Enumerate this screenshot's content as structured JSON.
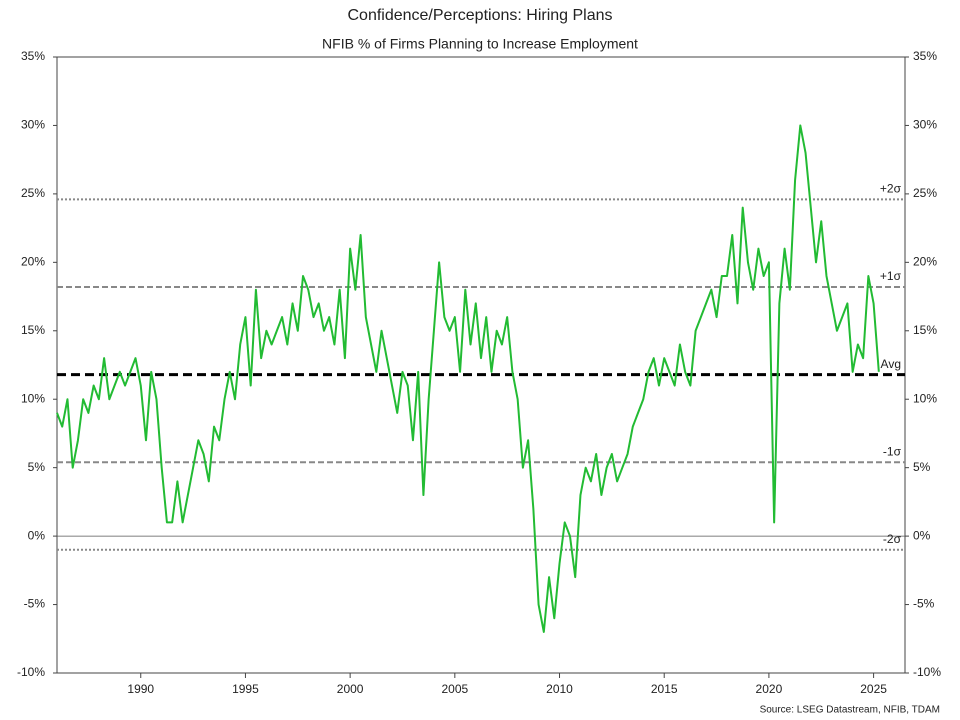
{
  "chart_data": {
    "type": "line",
    "title": "Confidence/Perceptions: Hiring Plans",
    "subtitle": "NFIB % of Firms Planning to Increase Employment",
    "source": "Source: LSEG Datastream, NFIB, TDAM",
    "x": [
      1986,
      1986.25,
      1986.5,
      1986.75,
      1987,
      1987.25,
      1987.5,
      1987.75,
      1988,
      1988.25,
      1988.5,
      1988.75,
      1989,
      1989.25,
      1989.5,
      1989.75,
      1990,
      1990.25,
      1990.5,
      1990.75,
      1991,
      1991.25,
      1991.5,
      1991.75,
      1992,
      1992.25,
      1992.5,
      1992.75,
      1993,
      1993.25,
      1993.5,
      1993.75,
      1994,
      1994.25,
      1994.5,
      1994.75,
      1995,
      1995.25,
      1995.5,
      1995.75,
      1996,
      1996.25,
      1996.5,
      1996.75,
      1997,
      1997.25,
      1997.5,
      1997.75,
      1998,
      1998.25,
      1998.5,
      1998.75,
      1999,
      1999.25,
      1999.5,
      1999.75,
      2000,
      2000.25,
      2000.5,
      2000.75,
      2001,
      2001.25,
      2001.5,
      2001.75,
      2002,
      2002.25,
      2002.5,
      2002.75,
      2003,
      2003.25,
      2003.5,
      2003.75,
      2004,
      2004.25,
      2004.5,
      2004.75,
      2005,
      2005.25,
      2005.5,
      2005.75,
      2006,
      2006.25,
      2006.5,
      2006.75,
      2007,
      2007.25,
      2007.5,
      2007.75,
      2008,
      2008.25,
      2008.5,
      2008.75,
      2009,
      2009.25,
      2009.5,
      2009.75,
      2010,
      2010.25,
      2010.5,
      2010.75,
      2011,
      2011.25,
      2011.5,
      2011.75,
      2012,
      2012.25,
      2012.5,
      2012.75,
      2013,
      2013.25,
      2013.5,
      2013.75,
      2014,
      2014.25,
      2014.5,
      2014.75,
      2015,
      2015.25,
      2015.5,
      2015.75,
      2016,
      2016.25,
      2016.5,
      2016.75,
      2017,
      2017.25,
      2017.5,
      2017.75,
      2018,
      2018.25,
      2018.5,
      2018.75,
      2019,
      2019.25,
      2019.5,
      2019.75,
      2020,
      2020.25,
      2020.5,
      2020.75,
      2021,
      2021.25,
      2021.5,
      2021.75,
      2022,
      2022.25,
      2022.5,
      2022.75,
      2023,
      2023.25,
      2023.5,
      2023.75,
      2024,
      2024.25,
      2024.5,
      2024.75,
      2025,
      2025.25
    ],
    "series": [
      {
        "name": "NFIB % of Firms Planning to Increase Employment",
        "color": "#22bb33",
        "values": [
          9,
          8,
          10,
          5,
          7,
          10,
          9,
          11,
          10,
          13,
          10,
          11,
          12,
          11,
          12,
          13,
          11,
          7,
          12,
          10,
          5,
          1,
          1,
          4,
          1,
          3,
          5,
          7,
          6,
          4,
          8,
          7,
          10,
          12,
          10,
          14,
          16,
          11,
          18,
          13,
          15,
          14,
          15,
          16,
          14,
          17,
          15,
          19,
          18,
          16,
          17,
          15,
          16,
          14,
          18,
          13,
          21,
          18,
          22,
          16,
          14,
          12,
          15,
          13,
          11,
          9,
          12,
          11,
          7,
          12,
          3,
          10,
          15,
          20,
          16,
          15,
          16,
          12,
          18,
          14,
          17,
          13,
          16,
          12,
          15,
          14,
          16,
          12,
          10,
          5,
          7,
          2,
          -5,
          -7,
          -3,
          -6,
          -2,
          1,
          0,
          -3,
          3,
          5,
          4,
          6,
          3,
          5,
          6,
          4,
          5,
          6,
          8,
          9,
          10,
          12,
          13,
          11,
          13,
          12,
          11,
          14,
          12,
          11,
          15,
          16,
          17,
          18,
          16,
          19,
          19,
          22,
          17,
          24,
          20,
          18,
          21,
          19,
          20,
          1,
          17,
          21,
          18,
          26,
          30,
          28,
          24,
          20,
          23,
          19,
          17,
          15,
          16,
          17,
          12,
          14,
          13,
          19,
          17,
          12
        ]
      }
    ],
    "xlim": [
      1986,
      2026.5
    ],
    "xticks": [
      1990,
      1995,
      2000,
      2005,
      2010,
      2015,
      2020,
      2025
    ],
    "ylim": [
      -10,
      35
    ],
    "yticks": [
      {
        "value": -10,
        "label": "-10%"
      },
      {
        "value": -5,
        "label": "-5%"
      },
      {
        "value": 0,
        "label": "0%"
      },
      {
        "value": 5,
        "label": "5%"
      },
      {
        "value": 10,
        "label": "10%"
      },
      {
        "value": 15,
        "label": "15%"
      },
      {
        "value": 20,
        "label": "20%"
      },
      {
        "value": 25,
        "label": "25%"
      },
      {
        "value": 30,
        "label": "30%"
      },
      {
        "value": 35,
        "label": "35%"
      }
    ],
    "y2lim": [
      -10,
      35
    ],
    "y2ticks": [
      {
        "value": -10,
        "label": "-10%"
      },
      {
        "value": -5,
        "label": "-5%"
      },
      {
        "value": 0,
        "label": "0%"
      },
      {
        "value": 5,
        "label": "5%"
      },
      {
        "value": 10,
        "label": "10%"
      },
      {
        "value": 15,
        "label": "15%"
      },
      {
        "value": 20,
        "label": "20%"
      },
      {
        "value": 25,
        "label": "25%"
      },
      {
        "value": 30,
        "label": "30%"
      },
      {
        "value": 35,
        "label": "35%"
      }
    ],
    "reference_lines": [
      {
        "label": "+2σ",
        "value": 24.6,
        "style": "dotted"
      },
      {
        "label": "+1σ",
        "value": 18.2,
        "style": "dashed"
      },
      {
        "label": "Avg",
        "value": 11.8,
        "style": "bold-dashed"
      },
      {
        "label": "-1σ",
        "value": 5.4,
        "style": "dashed"
      },
      {
        "label": "-2σ",
        "value": -1,
        "style": "dotted"
      }
    ]
  }
}
